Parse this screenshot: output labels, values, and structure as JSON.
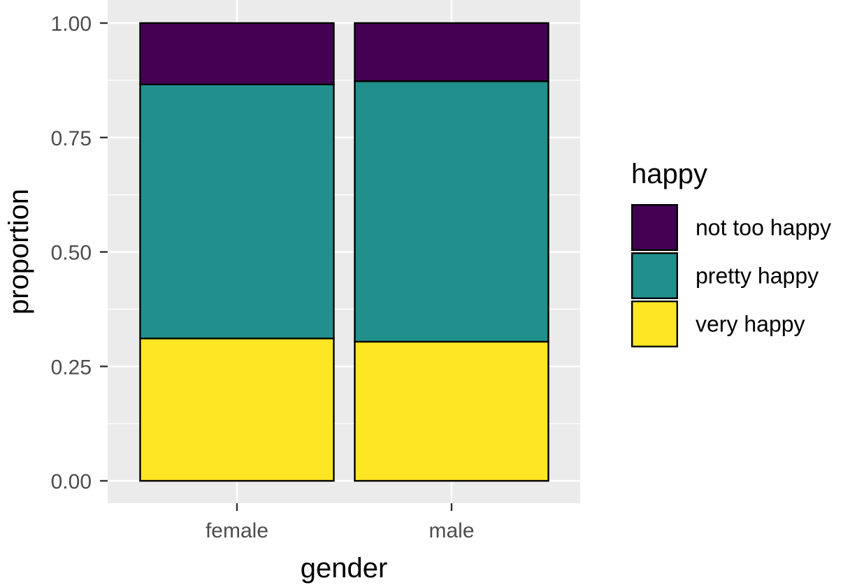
{
  "chart_data": {
    "type": "bar",
    "stacked": true,
    "position": "fill",
    "categories": [
      "female",
      "male"
    ],
    "series": [
      {
        "name": "very happy",
        "color": "#FDE725",
        "values": [
          0.311,
          0.304
        ]
      },
      {
        "name": "pretty happy",
        "color": "#21908C",
        "values": [
          0.555,
          0.569
        ]
      },
      {
        "name": "not too happy",
        "color": "#440154",
        "values": [
          0.134,
          0.127
        ]
      }
    ],
    "xlabel": "gender",
    "ylabel": "proportion",
    "ylim": [
      0,
      1
    ],
    "yticks": [
      0,
      0.25,
      0.5,
      0.75,
      1
    ],
    "ytick_labels": [
      "0.00",
      "0.25",
      "0.50",
      "0.75",
      "1.00"
    ],
    "legend": {
      "title": "happy",
      "position": "right",
      "order": [
        "not too happy",
        "pretty happy",
        "very happy"
      ]
    },
    "grid": true,
    "panel_background": "#EBEBEB"
  }
}
